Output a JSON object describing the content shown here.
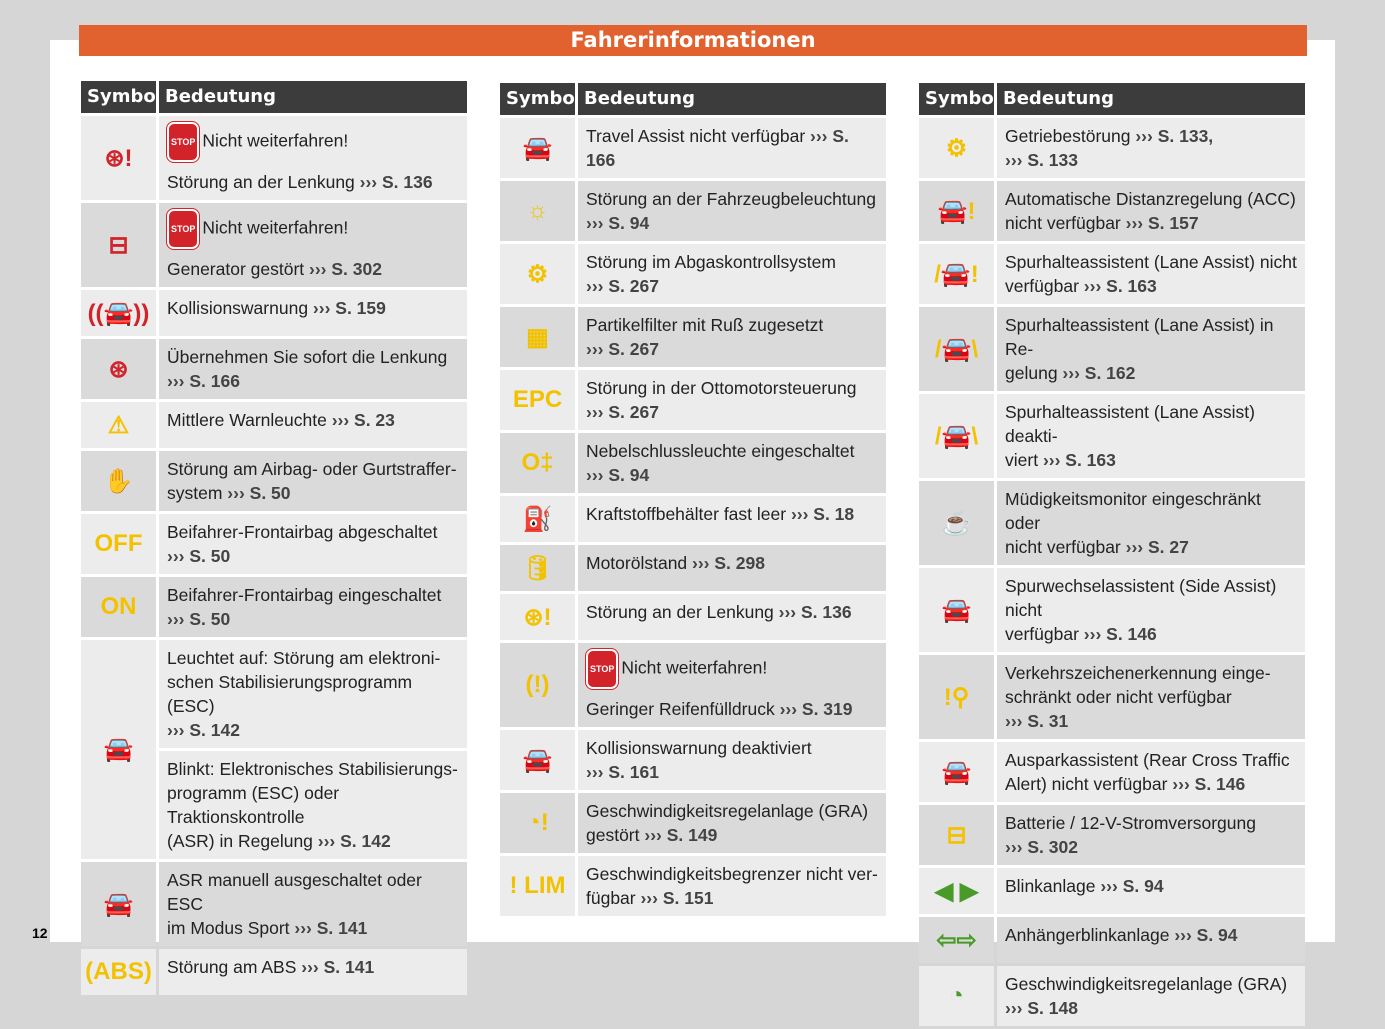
{
  "title": "Fahrerinformationen",
  "page_number": "12",
  "headers": {
    "symbol": "Symbol",
    "meaning": "Bedeutung"
  },
  "stop_label": "STOP",
  "colors": {
    "red": "#d2232a",
    "yellow": "#f2c200",
    "green": "#4a9a2a",
    "banner": "#e2622f"
  },
  "columns": [
    [
      {
        "icon": "steering-warning-icon",
        "color": "red",
        "parts": [
          {
            "stop": "Nicht weiterfahren!",
            "text": "Störung an der Lenkung ",
            "ref": "››› S. 136"
          }
        ]
      },
      {
        "icon": "battery-icon",
        "color": "red",
        "parts": [
          {
            "stop": "Nicht weiterfahren!",
            "text": "Generator gestört ",
            "ref": "››› S. 302"
          }
        ]
      },
      {
        "icon": "collision-warning-icon",
        "color": "red",
        "parts": [
          {
            "text": "Kollisionswarnung ",
            "ref": "››› S. 159"
          }
        ]
      },
      {
        "icon": "hands-on-steering-icon",
        "color": "red",
        "parts": [
          {
            "text": "Übernehmen Sie sofort die Lenkung\n",
            "ref": "››› S. 166"
          }
        ]
      },
      {
        "icon": "warning-triangle-icon",
        "color": "yellow",
        "parts": [
          {
            "text": "Mittlere Warnleuchte ",
            "ref": "››› S. 23"
          }
        ]
      },
      {
        "icon": "airbag-icon",
        "color": "yellow",
        "parts": [
          {
            "text": "Störung am Airbag- oder Gurtstraffer-\nsystem ",
            "ref": "››› S. 50"
          }
        ]
      },
      {
        "icon": "airbag-off-icon",
        "color": "yellow",
        "glyph": "OFF",
        "parts": [
          {
            "text": "Beifahrer-Frontairbag abgeschaltet\n",
            "ref": "››› S. 50"
          }
        ]
      },
      {
        "icon": "airbag-on-icon",
        "color": "yellow",
        "glyph": "ON",
        "parts": [
          {
            "text": "Beifahrer-Frontairbag eingeschaltet\n",
            "ref": "››› S. 50"
          }
        ]
      },
      {
        "icon": "esc-icon",
        "color": "yellow",
        "parts": [
          {
            "text": "Leuchtet auf: Störung am elektroni-\nschen Stabilisierungsprogramm (ESC)\n",
            "ref": "››› S. 142"
          },
          {
            "text": "Blinkt: Elektronisches Stabilisierungs-\nprogramm (ESC) oder Traktionskontrolle\n(ASR) in Regelung ",
            "ref": "››› S. 142"
          }
        ]
      },
      {
        "icon": "esc-off-icon",
        "color": "yellow",
        "parts": [
          {
            "text": "ASR manuell ausgeschaltet oder ESC\nim Modus Sport ",
            "ref": "››› S. 141"
          }
        ]
      },
      {
        "icon": "abs-icon",
        "color": "yellow",
        "glyph": "(ABS)",
        "parts": [
          {
            "text": "Störung am ABS ",
            "ref": "››› S. 141"
          }
        ]
      }
    ],
    [
      {
        "icon": "travel-assist-icon",
        "color": "yellow",
        "parts": [
          {
            "text": "Travel Assist nicht verfügbar ",
            "ref": "››› S. 166"
          }
        ]
      },
      {
        "icon": "light-fault-icon",
        "color": "yellow",
        "parts": [
          {
            "text": "Störung an der Fahrzeugbeleuchtung\n",
            "ref": "››› S. 94"
          }
        ]
      },
      {
        "icon": "engine-icon",
        "color": "yellow",
        "parts": [
          {
            "text": "Störung im Abgaskontrollsystem\n",
            "ref": "››› S. 267"
          }
        ]
      },
      {
        "icon": "particle-filter-icon",
        "color": "yellow",
        "parts": [
          {
            "text": "Partikelfilter mit Ruß zugesetzt\n",
            "ref": "››› S. 267"
          }
        ]
      },
      {
        "icon": "epc-icon",
        "color": "yellow",
        "glyph": "EPC",
        "parts": [
          {
            "text": "Störung in der Ottomotorsteuerung\n",
            "ref": "››› S. 267"
          }
        ]
      },
      {
        "icon": "rear-fog-light-icon",
        "color": "yellow",
        "parts": [
          {
            "text": "Nebelschlussleuchte eingeschaltet\n",
            "ref": "››› S. 94"
          }
        ]
      },
      {
        "icon": "fuel-icon",
        "color": "yellow",
        "parts": [
          {
            "text": "Kraftstoffbehälter fast leer ",
            "ref": "››› S. 18"
          }
        ]
      },
      {
        "icon": "oil-level-icon",
        "color": "yellow",
        "parts": [
          {
            "text": "Motorölstand ",
            "ref": "››› S. 298"
          }
        ]
      },
      {
        "icon": "steering-warning-icon",
        "color": "yellow",
        "parts": [
          {
            "text": "Störung an der Lenkung ",
            "ref": "››› S. 136"
          }
        ]
      },
      {
        "icon": "tire-pressure-icon",
        "color": "yellow",
        "glyph": "(!)",
        "parts": [
          {
            "stop": "Nicht weiterfahren!",
            "text": "Geringer Reifenfülldruck ",
            "ref": "››› S. 319"
          }
        ]
      },
      {
        "icon": "collision-warning-off-icon",
        "color": "yellow",
        "parts": [
          {
            "text": "Kollisionswarnung deaktiviert\n",
            "ref": "››› S. 161"
          }
        ]
      },
      {
        "icon": "cruise-control-fault-icon",
        "color": "yellow",
        "parts": [
          {
            "text": "Geschwindigkeitsregelanlage (GRA)\ngestört ",
            "ref": "››› S. 149"
          }
        ]
      },
      {
        "icon": "speed-limiter-icon",
        "color": "yellow",
        "glyph": "! LIM",
        "parts": [
          {
            "text": "Geschwindigkeitsbegrenzer nicht ver-\nfügbar ",
            "ref": "››› S. 151"
          }
        ]
      }
    ],
    [
      {
        "icon": "gearbox-icon",
        "color": "yellow",
        "parts": [
          {
            "text": "Getriebestörung ",
            "ref": "››› S. 133,\n››› S. 133"
          }
        ]
      },
      {
        "icon": "acc-icon",
        "color": "yellow",
        "parts": [
          {
            "text": "Automatische Distanzregelung (ACC)\nnicht verfügbar ",
            "ref": "››› S. 157"
          }
        ]
      },
      {
        "icon": "lane-assist-warning-icon",
        "color": "yellow",
        "parts": [
          {
            "text": "Spurhalteassistent (Lane Assist) nicht\nverfügbar ",
            "ref": "››› S. 163"
          }
        ]
      },
      {
        "icon": "lane-assist-icon",
        "color": "yellow",
        "parts": [
          {
            "text": "Spurhalteassistent (Lane Assist) in Re-\ngelung ",
            "ref": "››› S. 162"
          }
        ]
      },
      {
        "icon": "lane-assist-off-icon",
        "color": "yellow",
        "parts": [
          {
            "text": "Spurhalteassistent (Lane Assist) deakti-\nviert ",
            "ref": "››› S. 163"
          }
        ]
      },
      {
        "icon": "fatigue-coffee-icon",
        "color": "yellow",
        "parts": [
          {
            "text": "Müdigkeitsmonitor eingeschränkt oder\nnicht verfügbar ",
            "ref": "››› S. 27"
          }
        ]
      },
      {
        "icon": "side-assist-icon",
        "color": "yellow",
        "parts": [
          {
            "text": "Spurwechselassistent (Side Assist) nicht\nverfügbar ",
            "ref": "››› S. 146"
          }
        ]
      },
      {
        "icon": "traffic-sign-icon",
        "color": "yellow",
        "parts": [
          {
            "text": "Verkehrszeichenerkennung einge-\nschränkt oder nicht verfügbar\n",
            "ref": "››› S. 31"
          }
        ]
      },
      {
        "icon": "rear-cross-traffic-icon",
        "color": "yellow",
        "parts": [
          {
            "text": "Ausparkassistent (Rear Cross Traffic\nAlert) nicht verfügbar ",
            "ref": "››› S. 146"
          }
        ]
      },
      {
        "icon": "battery-icon",
        "color": "yellow",
        "parts": [
          {
            "text": "Batterie / 12-V-Stromversorgung\n",
            "ref": "››› S. 302"
          }
        ]
      },
      {
        "icon": "turn-signal-icon",
        "color": "green",
        "glyph": "◀ ▶",
        "parts": [
          {
            "text": "Blinkanlage ",
            "ref": "››› S. 94"
          }
        ]
      },
      {
        "icon": "trailer-turn-signal-icon",
        "color": "green",
        "glyph": "⇦⇨",
        "parts": [
          {
            "text": "Anhängerblinkanlage ",
            "ref": "››› S. 94"
          }
        ]
      },
      {
        "icon": "cruise-control-icon",
        "color": "green",
        "parts": [
          {
            "text": "Geschwindigkeitsregelanlage (GRA)\n",
            "ref": "››› S. 148"
          }
        ]
      }
    ]
  ]
}
